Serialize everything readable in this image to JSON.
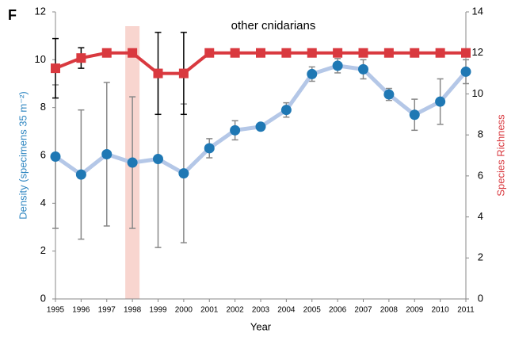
{
  "chart_data": {
    "type": "line",
    "panel_label": "F",
    "title": "other cnidarians",
    "xlabel": "Year",
    "ylabel": "Density (specimens 35 m⁻²)",
    "y2label": "Species Richness",
    "x": [
      1995,
      1996,
      1997,
      1998,
      1999,
      2000,
      2001,
      2002,
      2003,
      2004,
      2005,
      2006,
      2007,
      2008,
      2009,
      2010,
      2011
    ],
    "xlim": [
      1995,
      2011
    ],
    "xticks": [
      1995,
      1996,
      1997,
      1998,
      1999,
      2000,
      2001,
      2002,
      2003,
      2004,
      2005,
      2006,
      2007,
      2008,
      2009,
      2010,
      2011
    ],
    "ylim": [
      0,
      12
    ],
    "yticks": [
      0,
      2,
      4,
      6,
      8,
      10,
      12
    ],
    "y2lim": [
      0,
      14
    ],
    "y2ticks": [
      0,
      2,
      4,
      6,
      8,
      10,
      12,
      14
    ],
    "highlight_x": 1998,
    "highlight_color": "#f8d5cf",
    "ylabel_color": "#2e86c1",
    "y2label_color": "#d9393f",
    "series": [
      {
        "name": "Density",
        "color": "#1f78b4",
        "line_color": "#b4c7e7",
        "marker": "circle",
        "error_color": "#888888",
        "values": [
          5.95,
          5.2,
          6.05,
          5.7,
          5.85,
          5.25,
          6.3,
          7.05,
          7.2,
          7.9,
          9.4,
          9.75,
          9.6,
          8.55,
          7.7,
          8.25,
          9.5
        ],
        "errors": [
          3.0,
          2.7,
          3.0,
          2.75,
          3.7,
          2.9,
          0.4,
          0.4,
          0.1,
          0.3,
          0.3,
          0.3,
          0.4,
          0.25,
          0.65,
          0.95,
          0.5
        ]
      },
      {
        "name": "Species Richness",
        "axis": "y2",
        "color": "#d9393f",
        "line_color": "#d9393f",
        "marker": "square",
        "error_color": "#000000",
        "values": [
          11.25,
          11.75,
          12,
          12,
          11,
          11,
          12,
          12,
          12,
          12,
          12,
          12,
          12,
          12,
          12,
          12,
          12
        ],
        "errors": [
          1.45,
          0.5,
          0,
          0,
          2,
          2,
          0,
          0,
          0,
          0,
          0,
          0,
          0,
          0,
          0,
          0,
          0
        ]
      }
    ]
  }
}
